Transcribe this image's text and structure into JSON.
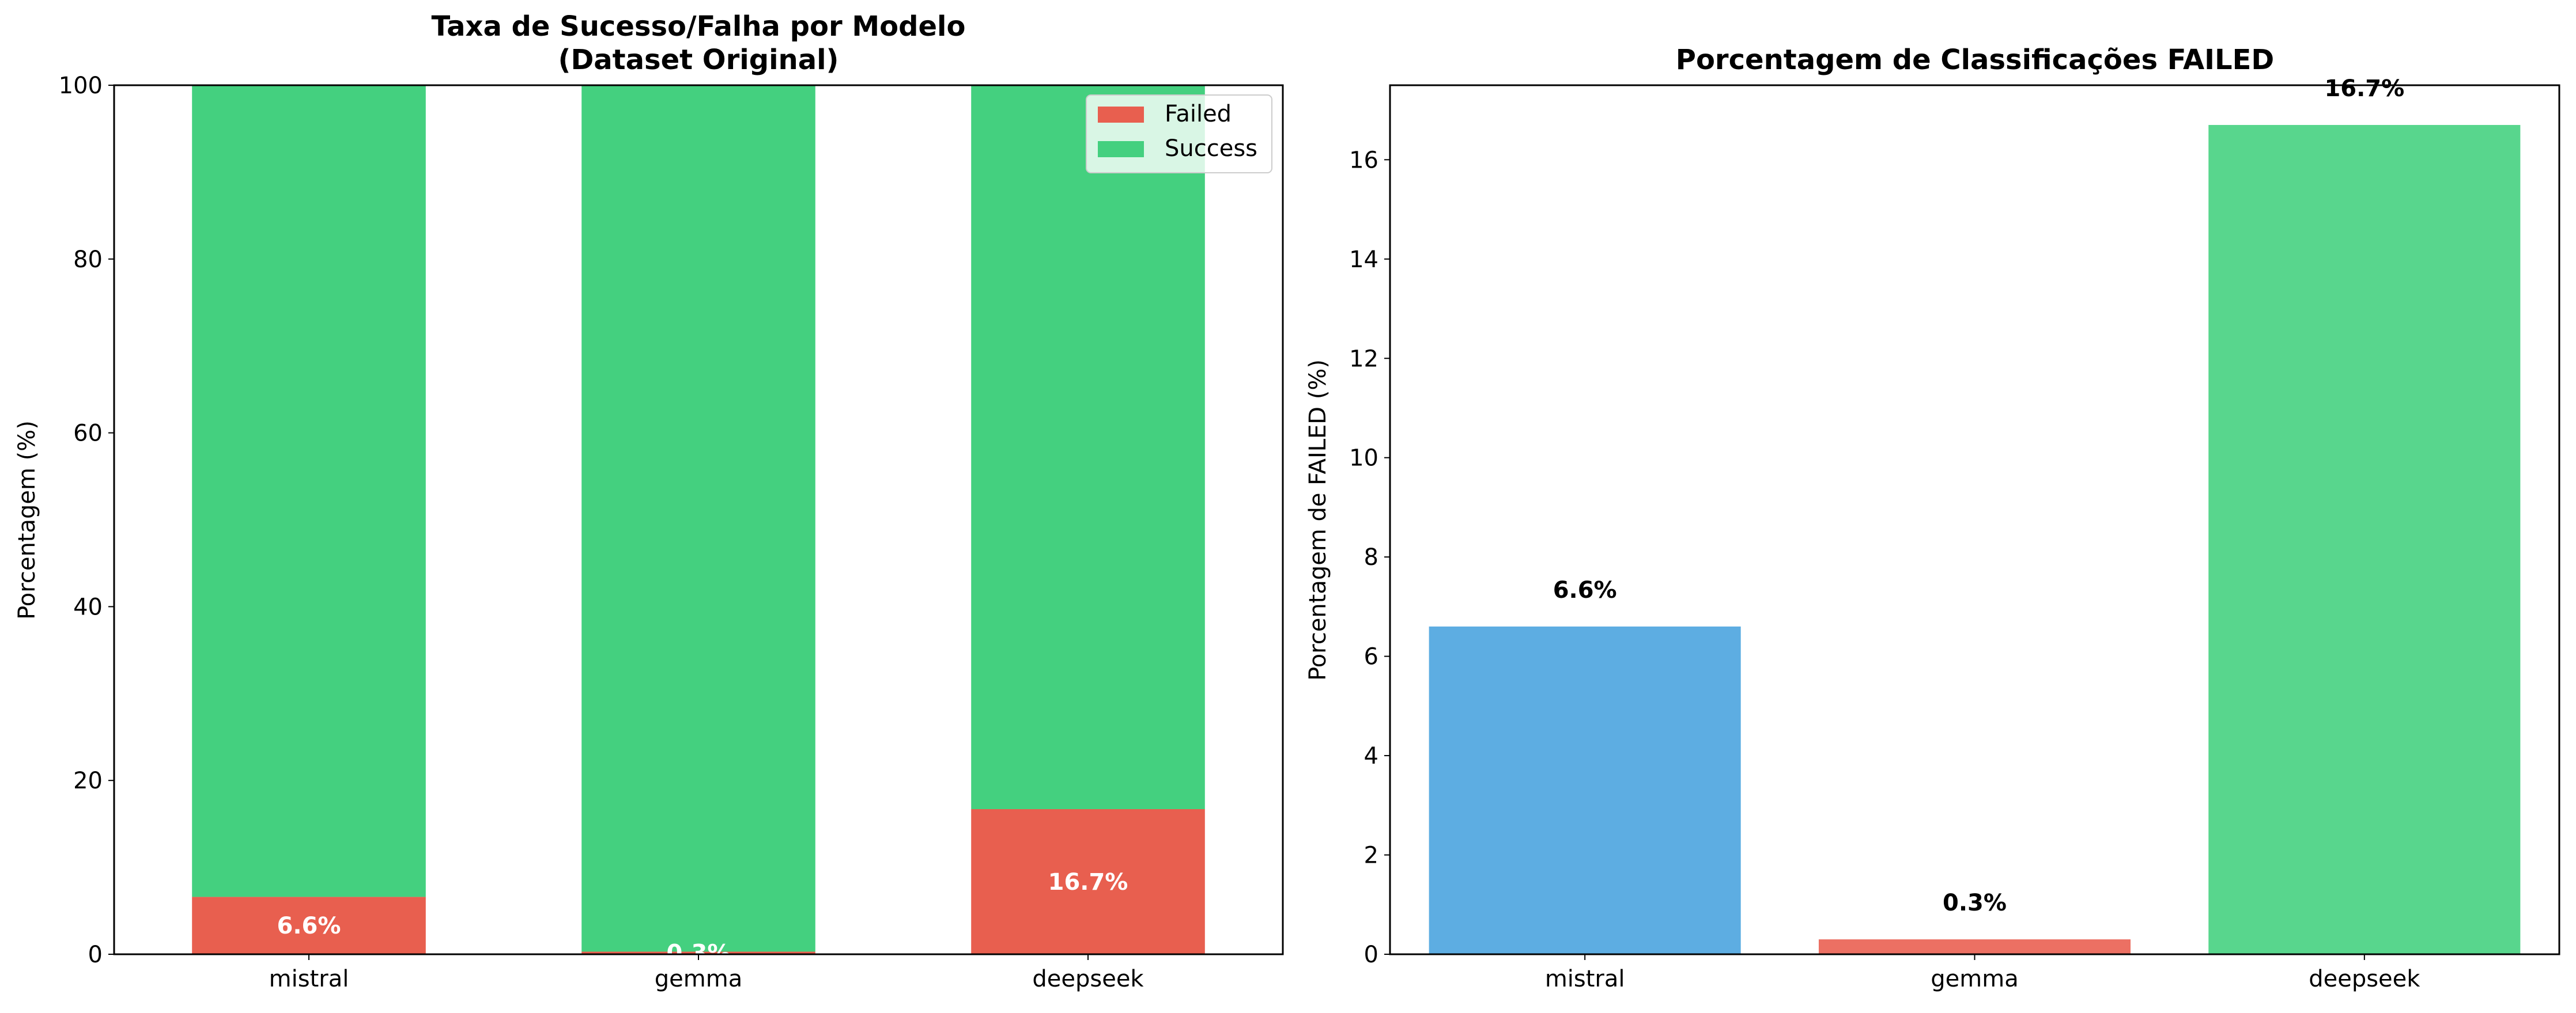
{
  "chart_data": [
    {
      "type": "bar",
      "stacked": true,
      "title": "Taxa de Sucesso/Falha por Modelo",
      "subtitle": "(Dataset Original)",
      "xlabel": "",
      "ylabel": "Porcentagem (%)",
      "ylim": [
        0,
        100
      ],
      "yticks": [
        0,
        20,
        40,
        60,
        80,
        100
      ],
      "categories": [
        "mistral",
        "gemma",
        "deepseek"
      ],
      "series": [
        {
          "name": "Failed",
          "color": "#e85f4f",
          "values": [
            6.6,
            0.3,
            16.7
          ]
        },
        {
          "name": "Success",
          "color": "#44d07f",
          "values": [
            93.4,
            99.7,
            83.3
          ]
        }
      ],
      "data_labels": [
        "6.6%",
        "0.3%",
        "16.7%"
      ],
      "legend": "top-right",
      "grid": false
    },
    {
      "type": "bar",
      "title": "Porcentagem de Classificações FAILED",
      "xlabel": "",
      "ylabel": "Porcentagem de FAILED (%)",
      "ylim": [
        0,
        17.5
      ],
      "yticks": [
        0,
        2,
        4,
        6,
        8,
        10,
        12,
        14,
        16
      ],
      "categories": [
        "mistral",
        "gemma",
        "deepseek"
      ],
      "values": [
        6.6,
        0.3,
        16.7
      ],
      "colors": [
        "#5dade2",
        "#ec7063",
        "#58d68d"
      ],
      "data_labels": [
        "6.6%",
        "0.3%",
        "16.7%"
      ],
      "grid": false
    }
  ]
}
